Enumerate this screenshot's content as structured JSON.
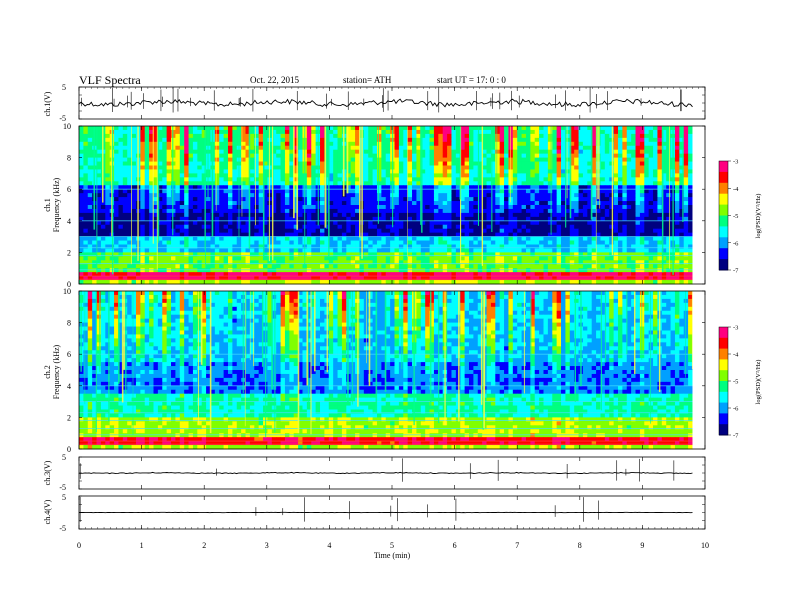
{
  "header": {
    "title": "VLF  Spectra",
    "date": "Oct. 22, 2015",
    "station": "station= ATH",
    "start": "start  UT =   17: 0  : 0"
  },
  "xaxis": {
    "label": "Time  (min)",
    "ticks": [
      "0",
      "1",
      "2",
      "3",
      "4",
      "5",
      "6",
      "7",
      "8",
      "9",
      "10"
    ],
    "range": [
      0,
      10
    ]
  },
  "ch1": {
    "label": "ch.1(V)",
    "ticks": [
      "5",
      "-5"
    ]
  },
  "spec1": {
    "label_ch": "ch.1",
    "label_freq": "Frequency  (kHz)",
    "ticks": [
      "0",
      "2",
      "4",
      "6",
      "8",
      "10"
    ],
    "colorbar_label": "log(PSD)(V²/Hz)",
    "colorbar_ticks": [
      "-3",
      "-4",
      "-5",
      "-6",
      "-7"
    ]
  },
  "spec2": {
    "label_ch": "ch.2",
    "label_freq": "Frequency  (kHz)",
    "ticks": [
      "0",
      "2",
      "4",
      "6",
      "8",
      "10"
    ],
    "colorbar_label": "log(PSD)(V²/Hz)",
    "colorbar_ticks": [
      "-3",
      "-4",
      "-5",
      "-6",
      "-7"
    ]
  },
  "ch3": {
    "label": "ch.3(V)",
    "ticks": [
      "5",
      "-5"
    ]
  },
  "ch4": {
    "label": "ch.4(V)",
    "ticks": [
      "5",
      "-5"
    ]
  },
  "chart_data": {
    "type": "heatmap",
    "title": "VLF  Spectra",
    "xlabel": "Time  (min)",
    "x_range": [
      0,
      10
    ],
    "data_end_min": 9.8,
    "panels": [
      {
        "name": "ch.1(V)",
        "type": "line",
        "ylim": [
          -5,
          5
        ],
        "baseline": 0
      },
      {
        "name": "ch.1",
        "type": "heatmap",
        "ylabel": "Frequency  (kHz)",
        "ylim": [
          0,
          10
        ],
        "zlim": [
          -7,
          -3
        ],
        "zlabel": "log(PSD)(V²/Hz)"
      },
      {
        "name": "ch.2",
        "type": "heatmap",
        "ylabel": "Frequency  (kHz)",
        "ylim": [
          0,
          10
        ],
        "zlim": [
          -7,
          -3
        ],
        "zlabel": "log(PSD)(V²/Hz)"
      },
      {
        "name": "ch.3(V)",
        "type": "line",
        "ylim": [
          -5,
          5
        ],
        "baseline": 0
      },
      {
        "name": "ch.4(V)",
        "type": "line",
        "ylim": [
          -5,
          5
        ],
        "baseline": 0
      }
    ],
    "colormap": [
      "#000080",
      "#0000ff",
      "#00a0ff",
      "#00ffff",
      "#00ff80",
      "#80ff00",
      "#ffff00",
      "#ff8000",
      "#ff0000",
      "#ff0080"
    ]
  }
}
